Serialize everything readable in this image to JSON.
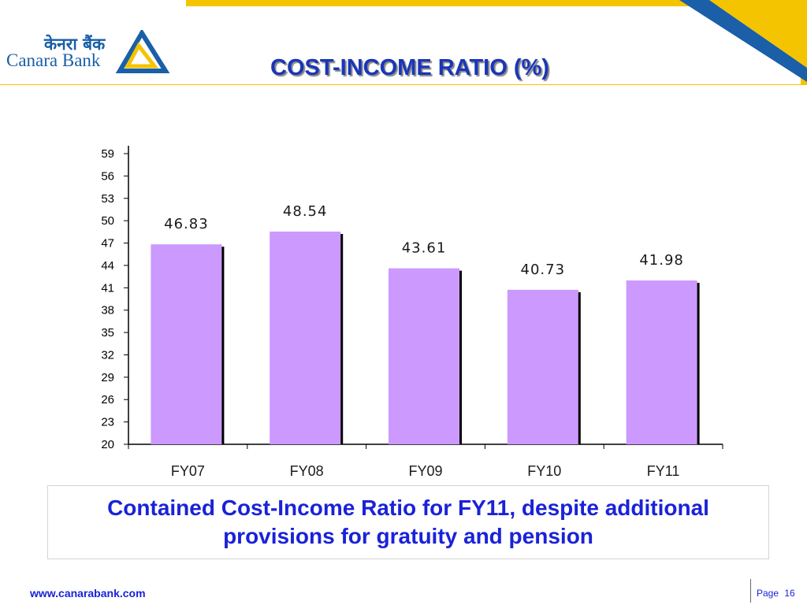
{
  "header": {
    "logo_hindi": "केनरा बैंक",
    "logo_english": "Canara Bank",
    "title": "COST-INCOME RATIO (%)"
  },
  "chart_data": {
    "type": "bar",
    "title": "",
    "xlabel": "",
    "ylabel": "",
    "categories": [
      "FY07",
      "FY08",
      "FY09",
      "FY10",
      "FY11"
    ],
    "values": [
      46.83,
      48.54,
      43.61,
      40.73,
      41.98
    ],
    "data_labels": [
      "46.83",
      "48.54",
      "43.61",
      "40.73",
      "41.98"
    ],
    "ylim": [
      20,
      59
    ],
    "yticks": [
      20,
      23,
      26,
      29,
      32,
      35,
      38,
      41,
      44,
      47,
      50,
      53,
      56,
      59
    ],
    "grid": false,
    "legend": "none",
    "bar_color": "#cc99ff",
    "bar_shadow_color": "#000000"
  },
  "caption": {
    "text": "Contained Cost-Income Ratio for FY11, despite additional provisions for gratuity and pension"
  },
  "footer": {
    "url": "www.canarabank.com",
    "page_label": "Page",
    "page_number": "16"
  },
  "colors": {
    "brand_blue": "#1a36b8",
    "accent_yellow": "#f5c400"
  }
}
